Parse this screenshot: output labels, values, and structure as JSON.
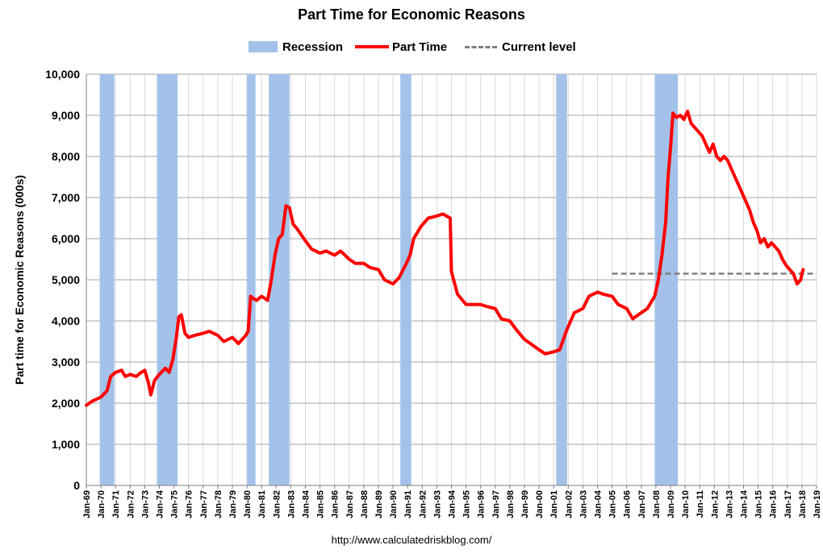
{
  "chart_data": {
    "type": "line",
    "title": "Part Time for Economic Reasons",
    "ylabel": "Part time for Economic Reasons (000s)",
    "xlabel": "",
    "source": "http://www.calculatedriskblog.com/",
    "ylim": [
      0,
      10000
    ],
    "xlim": [
      "1969-01",
      "2019-01"
    ],
    "y_ticks": [
      0,
      1000,
      2000,
      3000,
      4000,
      5000,
      6000,
      7000,
      8000,
      9000,
      10000
    ],
    "y_tick_labels": [
      "0",
      "1,000",
      "2,000",
      "3,000",
      "4,000",
      "5,000",
      "6,000",
      "7,000",
      "8,000",
      "9,000",
      "10,000"
    ],
    "x_tick_labels": [
      "Jan-69",
      "Jan-70",
      "Jan-71",
      "Jan-72",
      "Jan-73",
      "Jan-74",
      "Jan-75",
      "Jan-76",
      "Jan-77",
      "Jan-78",
      "Jan-79",
      "Jan-80",
      "Jan-81",
      "Jan-82",
      "Jan-83",
      "Jan-84",
      "Jan-85",
      "Jan-86",
      "Jan-87",
      "Jan-88",
      "Jan-89",
      "Jan-90",
      "Jan-91",
      "Jan-92",
      "Jan-93",
      "Jan-94",
      "Jan-95",
      "Jan-96",
      "Jan-97",
      "Jan-98",
      "Jan-99",
      "Jan-00",
      "Jan-01",
      "Jan-02",
      "Jan-03",
      "Jan-04",
      "Jan-05",
      "Jan-06",
      "Jan-07",
      "Jan-08",
      "Jan-09",
      "Jan-10",
      "Jan-11",
      "Jan-12",
      "Jan-13",
      "Jan-14",
      "Jan-15",
      "Jan-16",
      "Jan-17",
      "Jan-18",
      "Jan-19"
    ],
    "grid": {
      "vertical": true,
      "horizontal": true
    },
    "legend": {
      "position": "top",
      "entries": [
        {
          "label": "Recession",
          "kind": "area",
          "color": "#a4c2e9"
        },
        {
          "label": "Part Time",
          "kind": "line",
          "color": "#ff0000"
        },
        {
          "label": "Current level",
          "kind": "dashed",
          "color": "#7f7f7f"
        }
      ]
    },
    "recessions": [
      {
        "start": "1969-12",
        "end": "1970-11"
      },
      {
        "start": "1973-11",
        "end": "1975-03"
      },
      {
        "start": "1980-01",
        "end": "1980-07"
      },
      {
        "start": "1981-07",
        "end": "1982-11"
      },
      {
        "start": "1990-07",
        "end": "1991-03"
      },
      {
        "start": "2001-03",
        "end": "2001-11"
      },
      {
        "start": "2007-12",
        "end": "2009-06"
      }
    ],
    "current_level": {
      "value": 5150,
      "start": "2005-01",
      "end": "2019-01",
      "color": "#7f7f7f"
    },
    "series": [
      {
        "name": "Part Time",
        "color": "#ff0000",
        "x": [
          "1969-01",
          "1969-06",
          "1970-01",
          "1970-06",
          "1970-09",
          "1971-01",
          "1971-06",
          "1971-09",
          "1972-01",
          "1972-06",
          "1972-10",
          "1973-01",
          "1973-04",
          "1973-06",
          "1973-09",
          "1974-01",
          "1974-06",
          "1974-09",
          "1974-12",
          "1975-03",
          "1975-05",
          "1975-07",
          "1975-10",
          "1976-01",
          "1976-06",
          "1977-01",
          "1977-06",
          "1978-01",
          "1978-06",
          "1979-01",
          "1979-06",
          "1979-12",
          "1980-02",
          "1980-04",
          "1980-06",
          "1980-09",
          "1981-01",
          "1981-06",
          "1981-09",
          "1981-12",
          "1982-03",
          "1982-06",
          "1982-09",
          "1982-12",
          "1983-01",
          "1983-03",
          "1983-06",
          "1984-01",
          "1984-06",
          "1985-01",
          "1985-06",
          "1986-01",
          "1986-06",
          "1987-01",
          "1987-06",
          "1988-01",
          "1988-06",
          "1989-01",
          "1989-06",
          "1990-01",
          "1990-06",
          "1990-12",
          "1991-03",
          "1991-06",
          "1991-12",
          "1992-06",
          "1993-01",
          "1993-06",
          "1993-12",
          "1994-01",
          "1994-06",
          "1995-01",
          "1996-01",
          "1996-06",
          "1997-01",
          "1997-06",
          "1998-01",
          "1998-06",
          "1999-01",
          "1999-06",
          "2000-01",
          "2000-06",
          "2001-01",
          "2001-06",
          "2001-12",
          "2002-06",
          "2003-01",
          "2003-06",
          "2004-01",
          "2004-06",
          "2005-01",
          "2005-06",
          "2006-01",
          "2006-06",
          "2007-01",
          "2007-06",
          "2007-12",
          "2008-03",
          "2008-06",
          "2008-09",
          "2008-11",
          "2009-01",
          "2009-03",
          "2009-06",
          "2009-09",
          "2009-12",
          "2010-03",
          "2010-06",
          "2010-09",
          "2010-12",
          "2011-03",
          "2011-06",
          "2011-09",
          "2011-12",
          "2012-03",
          "2012-06",
          "2012-09",
          "2012-12",
          "2013-03",
          "2013-06",
          "2013-09",
          "2013-12",
          "2014-03",
          "2014-06",
          "2014-09",
          "2014-12",
          "2015-03",
          "2015-06",
          "2015-09",
          "2015-12",
          "2016-03",
          "2016-06",
          "2016-09",
          "2016-12",
          "2017-03",
          "2017-06",
          "2017-09",
          "2017-12",
          "2018-01",
          "2018-02"
        ],
        "y": [
          1950,
          2050,
          2150,
          2300,
          2650,
          2750,
          2800,
          2650,
          2700,
          2650,
          2750,
          2800,
          2500,
          2200,
          2550,
          2700,
          2850,
          2750,
          3050,
          3600,
          4100,
          4150,
          3700,
          3600,
          3650,
          3700,
          3750,
          3650,
          3500,
          3600,
          3450,
          3650,
          3750,
          4600,
          4550,
          4500,
          4600,
          4500,
          5000,
          5600,
          6000,
          6100,
          6800,
          6750,
          6600,
          6350,
          6250,
          5950,
          5750,
          5650,
          5700,
          5600,
          5700,
          5500,
          5400,
          5400,
          5300,
          5250,
          5000,
          4900,
          5050,
          5400,
          5600,
          6000,
          6300,
          6500,
          6550,
          6600,
          6500,
          5200,
          4650,
          4400,
          4400,
          4350,
          4300,
          4050,
          4000,
          3800,
          3550,
          3450,
          3300,
          3200,
          3250,
          3300,
          3800,
          4200,
          4300,
          4600,
          4700,
          4650,
          4600,
          4400,
          4300,
          4050,
          4200,
          4300,
          4600,
          5000,
          5600,
          6400,
          7500,
          8200,
          9050,
          8950,
          9000,
          8900,
          9100,
          8800,
          8700,
          8600,
          8500,
          8300,
          8100,
          8300,
          8000,
          7900,
          8000,
          7900,
          7700,
          7500,
          7300,
          7100,
          6900,
          6700,
          6400,
          6200,
          5900,
          6000,
          5800,
          5900,
          5800,
          5700,
          5500,
          5350,
          5250,
          5150,
          4900,
          5000,
          5150,
          5250
        ]
      }
    ]
  }
}
